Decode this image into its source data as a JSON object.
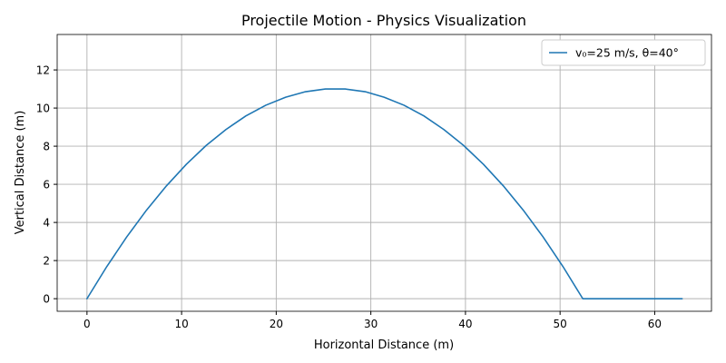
{
  "chart_data": {
    "type": "line",
    "title": "Projectile Motion - Physics Visualization",
    "xlabel": "Horizontal Distance (m)",
    "ylabel": "Vertical Distance (m)",
    "xlim": [
      -3.15,
      66.0
    ],
    "ylim": [
      -0.66,
      13.86
    ],
    "x_ticks": [
      0,
      10,
      20,
      30,
      40,
      50,
      60
    ],
    "y_ticks": [
      0,
      2,
      4,
      6,
      8,
      10,
      12
    ],
    "grid": true,
    "legend_position": "top-right",
    "series": [
      {
        "name": "v₀=25 m/s, θ=40°",
        "color": "#1f77b4",
        "x": [
          0,
          2.1,
          4.2,
          6.3,
          8.4,
          10.5,
          12.6,
          14.7,
          16.8,
          18.9,
          21.0,
          23.1,
          25.2,
          27.3,
          29.4,
          31.4,
          33.5,
          35.6,
          37.7,
          39.8,
          41.9,
          44.0,
          46.1,
          48.2,
          50.3,
          52.4,
          54.5,
          56.6,
          58.7,
          60.8,
          62.9
        ],
        "y": [
          0,
          1.69,
          3.24,
          4.65,
          5.92,
          7.05,
          8.04,
          8.88,
          9.59,
          10.15,
          10.57,
          10.86,
          11.0,
          11.0,
          10.86,
          10.57,
          10.15,
          9.59,
          8.88,
          8.04,
          7.05,
          5.92,
          4.65,
          3.24,
          1.69,
          0,
          0,
          0,
          0,
          0,
          0
        ]
      }
    ]
  }
}
